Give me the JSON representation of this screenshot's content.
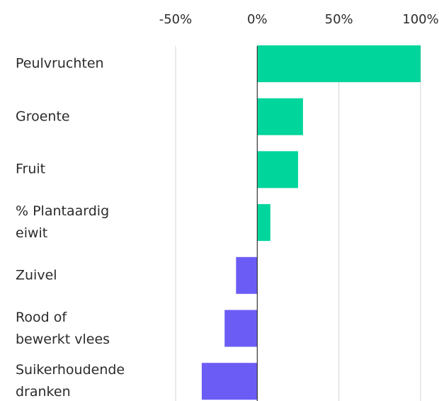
{
  "chart_data": {
    "type": "barh",
    "categories": [
      "Peulvruchten",
      "Groente",
      "Fruit",
      "% Plantaardig\neiwit",
      "Zuivel",
      "Rood of\nbewerkt vlees",
      "Suikerhoudende\ndranken"
    ],
    "values": [
      100,
      28,
      25,
      8,
      -13,
      -20,
      -34
    ],
    "colors": [
      "#00d59b",
      "#00d59b",
      "#00d59b",
      "#00d59b",
      "#6c5cf6",
      "#6c5cf6",
      "#6c5cf6"
    ],
    "xlim": [
      -50,
      100
    ],
    "xticks": [
      {
        "value": -50,
        "label": "-50%"
      },
      {
        "value": 0,
        "label": "0%"
      },
      {
        "value": 50,
        "label": "50%"
      },
      {
        "value": 100,
        "label": "100%"
      }
    ],
    "grid": true
  }
}
